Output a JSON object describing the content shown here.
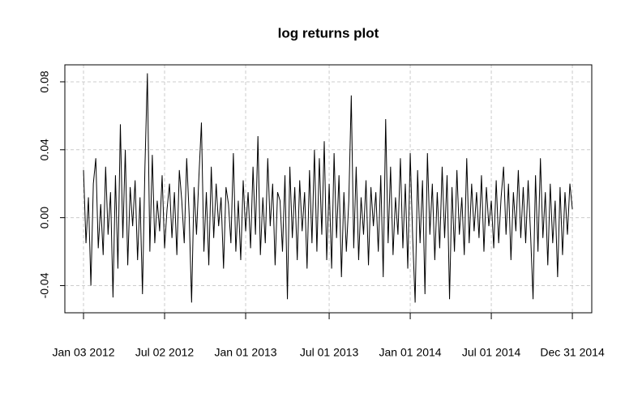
{
  "chart_data": {
    "type": "line",
    "title": "log returns plot",
    "values": [
      0.028,
      -0.015,
      0.012,
      -0.04,
      0.02,
      0.035,
      -0.018,
      0.008,
      -0.022,
      0.03,
      -0.01,
      0.015,
      -0.047,
      0.025,
      -0.03,
      0.055,
      -0.012,
      0.04,
      -0.028,
      0.018,
      -0.005,
      0.022,
      -0.025,
      0.012,
      -0.045,
      0.03,
      0.085,
      -0.02,
      0.037,
      -0.015,
      0.01,
      -0.008,
      0.025,
      -0.018,
      0.005,
      0.02,
      -0.012,
      0.015,
      -0.022,
      0.028,
      0.01,
      -0.015,
      0.035,
      0.002,
      -0.05,
      0.018,
      -0.01,
      0.025,
      0.056,
      -0.02,
      0.015,
      -0.028,
      0.03,
      -0.012,
      0.02,
      -0.005,
      0.012,
      -0.03,
      0.018,
      0.008,
      -0.015,
      0.038,
      -0.02,
      0.01,
      -0.025,
      0.022,
      -0.008,
      0.015,
      -0.018,
      0.03,
      -0.01,
      0.048,
      -0.022,
      0.012,
      -0.015,
      0.035,
      -0.005,
      0.02,
      -0.028,
      0.015,
      0.01,
      -0.02,
      0.025,
      -0.048,
      0.03,
      -0.012,
      0.018,
      -0.025,
      0.022,
      -0.008,
      0.015,
      -0.03,
      0.028,
      -0.015,
      0.04,
      -0.02,
      0.035,
      -0.01,
      0.045,
      -0.025,
      0.02,
      -0.03,
      0.038,
      -0.012,
      0.025,
      -0.035,
      0.015,
      -0.02,
      0.01,
      0.072,
      -0.018,
      0.03,
      -0.025,
      0.012,
      -0.01,
      0.022,
      -0.028,
      0.018,
      -0.005,
      0.015,
      -0.02,
      0.025,
      -0.035,
      0.058,
      -0.015,
      0.03,
      -0.022,
      0.012,
      -0.01,
      0.035,
      -0.018,
      0.02,
      -0.03,
      0.038,
      -0.012,
      -0.05,
      0.028,
      -0.015,
      0.022,
      -0.045,
      0.038,
      -0.01,
      0.02,
      -0.025,
      0.015,
      -0.018,
      0.03,
      -0.012,
      0.025,
      -0.048,
      0.018,
      -0.02,
      0.028,
      -0.01,
      0.012,
      -0.022,
      0.035,
      -0.015,
      0.02,
      -0.008,
      0.015,
      -0.012,
      0.025,
      -0.02,
      0.018,
      -0.005,
      0.01,
      -0.018,
      0.022,
      -0.015,
      0.012,
      0.03,
      -0.01,
      0.02,
      -0.025,
      0.015,
      -0.008,
      0.028,
      -0.012,
      0.018,
      -0.015,
      0.022,
      -0.01,
      -0.048,
      0.025,
      -0.02,
      0.035,
      -0.012,
      0.015,
      -0.028,
      0.02,
      -0.015,
      0.01,
      -0.035,
      0.018,
      -0.022,
      0.015,
      -0.01,
      0.02,
      0.005
    ],
    "color": "#000000",
    "xlim": [
      -7.6,
      206.9
    ],
    "xticks": [
      {
        "value": 0,
        "label": "Jan 03 2012"
      },
      {
        "value": 33,
        "label": "Jul 02 2012"
      },
      {
        "value": 66,
        "label": "Jan 01 2013"
      },
      {
        "value": 100,
        "label": "Jul 01 2013"
      },
      {
        "value": 133,
        "label": "Jan 01 2014"
      },
      {
        "value": 166,
        "label": "Jul 01 2014"
      },
      {
        "value": 199,
        "label": "Dec 31 2014"
      }
    ],
    "ylim": [
      -0.056,
      0.09
    ],
    "yticks": [
      -0.04,
      {
        "value": 0,
        "label": "0.00"
      },
      0.04,
      0.08
    ],
    "grid": true
  }
}
